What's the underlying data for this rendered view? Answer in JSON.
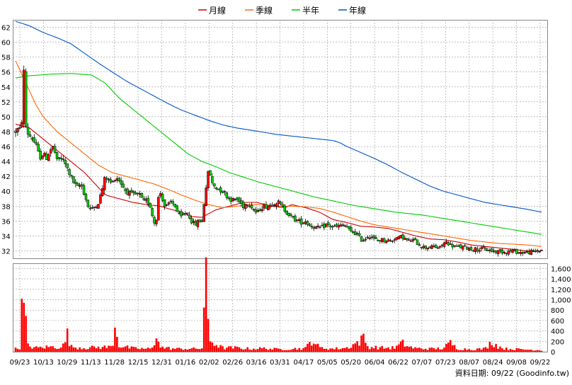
{
  "chart_data": {
    "type": "candlestick",
    "legend": [
      {
        "name": "月線",
        "color": "#cc0000"
      },
      {
        "name": "季線",
        "color": "#ff6600"
      },
      {
        "name": "半年",
        "color": "#00cc00"
      },
      {
        "name": "年線",
        "color": "#0055cc"
      }
    ],
    "legend_position": "top-center",
    "grid": true,
    "price_axis": {
      "side": "left",
      "ylim": [
        31,
        63
      ],
      "ticks": [
        32,
        34,
        36,
        38,
        40,
        42,
        44,
        46,
        48,
        50,
        52,
        54,
        56,
        58,
        60,
        62
      ]
    },
    "volume_axis": {
      "side": "right",
      "ylim": [
        0,
        1700
      ],
      "ticks": [
        "0",
        "200",
        "400",
        "600",
        "800",
        "1,000",
        "1,200",
        "1,400",
        "1,600"
      ],
      "tick_values": [
        0,
        200,
        400,
        600,
        800,
        1000,
        1200,
        1400,
        1600
      ]
    },
    "x_labels": [
      "09/23",
      "10/13",
      "10/29",
      "11/13",
      "11/28",
      "12/15",
      "12/31",
      "01/16",
      "02/02",
      "02/26",
      "03/16",
      "03/31",
      "04/17",
      "05/05",
      "05/20",
      "06/04",
      "06/22",
      "07/07",
      "07/23",
      "08/07",
      "08/24",
      "09/08",
      "09/22"
    ],
    "series_keypoints": {
      "月線": [
        [
          0,
          49
        ],
        [
          20,
          48.5
        ],
        [
          40,
          47
        ],
        [
          60,
          45.5
        ],
        [
          80,
          44
        ],
        [
          100,
          42.5
        ],
        [
          115,
          41
        ],
        [
          130,
          39.5
        ],
        [
          150,
          39
        ],
        [
          170,
          38.5
        ],
        [
          190,
          38.2
        ],
        [
          210,
          38
        ],
        [
          220,
          37.7
        ],
        [
          240,
          37.2
        ],
        [
          255,
          36.6
        ],
        [
          270,
          36.5
        ],
        [
          290,
          37.5
        ],
        [
          310,
          38
        ],
        [
          330,
          38.5
        ],
        [
          350,
          38.5
        ],
        [
          370,
          38
        ],
        [
          390,
          37.8
        ],
        [
          400,
          38.2
        ],
        [
          420,
          37.8
        ],
        [
          440,
          37.2
        ],
        [
          460,
          36.2
        ],
        [
          480,
          35.8
        ],
        [
          500,
          35.3
        ],
        [
          520,
          35.2
        ],
        [
          540,
          35
        ],
        [
          560,
          34.5
        ],
        [
          580,
          34
        ],
        [
          600,
          33.6
        ],
        [
          620,
          33.5
        ],
        [
          640,
          33.2
        ],
        [
          660,
          32.8
        ],
        [
          680,
          32.6
        ],
        [
          700,
          32.4
        ],
        [
          720,
          32.2
        ],
        [
          740,
          32
        ],
        [
          750,
          31.9
        ],
        [
          762,
          32
        ]
      ],
      "季線": [
        [
          0,
          57.5
        ],
        [
          10,
          55.5
        ],
        [
          20,
          53.5
        ],
        [
          30,
          51.5
        ],
        [
          40,
          50
        ],
        [
          60,
          48
        ],
        [
          80,
          46.5
        ],
        [
          100,
          45
        ],
        [
          120,
          43.5
        ],
        [
          140,
          42.5
        ],
        [
          160,
          42
        ],
        [
          180,
          41.5
        ],
        [
          200,
          41
        ],
        [
          220,
          40.3
        ],
        [
          240,
          39.5
        ],
        [
          260,
          38.8
        ],
        [
          280,
          38.2
        ],
        [
          300,
          37.8
        ],
        [
          320,
          38
        ],
        [
          340,
          38.2
        ],
        [
          360,
          38.2
        ],
        [
          380,
          38
        ],
        [
          400,
          38
        ],
        [
          420,
          37.9
        ],
        [
          440,
          37.7
        ],
        [
          460,
          37.2
        ],
        [
          480,
          36.6
        ],
        [
          500,
          36
        ],
        [
          520,
          35.5
        ],
        [
          540,
          35.2
        ],
        [
          560,
          34.9
        ],
        [
          580,
          34.6
        ],
        [
          600,
          34.3
        ],
        [
          620,
          34
        ],
        [
          640,
          33.7
        ],
        [
          660,
          33.4
        ],
        [
          680,
          33.2
        ],
        [
          700,
          33
        ],
        [
          720,
          32.9
        ],
        [
          740,
          32.8
        ],
        [
          762,
          32.6
        ]
      ],
      "半年": [
        [
          0,
          55.2
        ],
        [
          20,
          55.5
        ],
        [
          50,
          55.7
        ],
        [
          80,
          55.8
        ],
        [
          110,
          55.6
        ],
        [
          130,
          54.5
        ],
        [
          150,
          52.5
        ],
        [
          170,
          51
        ],
        [
          190,
          49.5
        ],
        [
          210,
          48
        ],
        [
          230,
          46.5
        ],
        [
          250,
          45
        ],
        [
          270,
          44
        ],
        [
          290,
          43.3
        ],
        [
          310,
          42.5
        ],
        [
          330,
          41.9
        ],
        [
          350,
          41.3
        ],
        [
          370,
          40.8
        ],
        [
          390,
          40.3
        ],
        [
          410,
          39.8
        ],
        [
          430,
          39.3
        ],
        [
          450,
          38.9
        ],
        [
          470,
          38.5
        ],
        [
          490,
          38.1
        ],
        [
          510,
          37.8
        ],
        [
          530,
          37.5
        ],
        [
          550,
          37.2
        ],
        [
          570,
          37
        ],
        [
          590,
          36.8
        ],
        [
          610,
          36.5
        ],
        [
          630,
          36.2
        ],
        [
          650,
          35.9
        ],
        [
          670,
          35.6
        ],
        [
          690,
          35.3
        ],
        [
          710,
          35
        ],
        [
          730,
          34.7
        ],
        [
          750,
          34.4
        ],
        [
          762,
          34.2
        ]
      ],
      "年線": [
        [
          0,
          62.8
        ],
        [
          20,
          62.2
        ],
        [
          40,
          61.3
        ],
        [
          60,
          60.6
        ],
        [
          80,
          59.8
        ],
        [
          100,
          58.5
        ],
        [
          120,
          57.2
        ],
        [
          140,
          56
        ],
        [
          160,
          54.8
        ],
        [
          180,
          53.8
        ],
        [
          200,
          52.8
        ],
        [
          220,
          51.8
        ],
        [
          240,
          50.9
        ],
        [
          260,
          50.2
        ],
        [
          280,
          49.5
        ],
        [
          300,
          48.9
        ],
        [
          320,
          48.5
        ],
        [
          340,
          48.2
        ],
        [
          360,
          47.9
        ],
        [
          380,
          47.6
        ],
        [
          400,
          47.4
        ],
        [
          420,
          47.2
        ],
        [
          440,
          47
        ],
        [
          460,
          46.8
        ],
        [
          470,
          46.5
        ],
        [
          480,
          46
        ],
        [
          500,
          45.2
        ],
        [
          520,
          44.4
        ],
        [
          540,
          43.5
        ],
        [
          560,
          42.5
        ],
        [
          580,
          41.6
        ],
        [
          600,
          40.7
        ],
        [
          620,
          40
        ],
        [
          640,
          39.5
        ],
        [
          660,
          39
        ],
        [
          680,
          38.5
        ],
        [
          700,
          38.2
        ],
        [
          720,
          37.9
        ],
        [
          740,
          37.6
        ],
        [
          762,
          37.2
        ]
      ]
    },
    "price_keypoints": [
      [
        0,
        48
      ],
      [
        5,
        48.5
      ],
      [
        8,
        47.5
      ],
      [
        10,
        51.5
      ],
      [
        12,
        56
      ],
      [
        14,
        49.5
      ],
      [
        16,
        48
      ],
      [
        20,
        47.5
      ],
      [
        25,
        47
      ],
      [
        30,
        46
      ],
      [
        35,
        44.5
      ],
      [
        40,
        45
      ],
      [
        45,
        44.5
      ],
      [
        50,
        45.5
      ],
      [
        55,
        46
      ],
      [
        60,
        44
      ],
      [
        65,
        44.5
      ],
      [
        70,
        44
      ],
      [
        80,
        42
      ],
      [
        85,
        41
      ],
      [
        90,
        40.5
      ],
      [
        95,
        41
      ],
      [
        100,
        39.5
      ],
      [
        105,
        38
      ],
      [
        110,
        37.5
      ],
      [
        115,
        38
      ],
      [
        120,
        38.5
      ],
      [
        125,
        40
      ],
      [
        130,
        42
      ],
      [
        135,
        41.5
      ],
      [
        140,
        41
      ],
      [
        145,
        42
      ],
      [
        150,
        41.5
      ],
      [
        160,
        40
      ],
      [
        170,
        39.5
      ],
      [
        180,
        39.5
      ],
      [
        185,
        38.5
      ],
      [
        190,
        38.8
      ],
      [
        195,
        38
      ],
      [
        200,
        36
      ],
      [
        203,
        35.5
      ],
      [
        208,
        40
      ],
      [
        212,
        39.5
      ],
      [
        215,
        38
      ],
      [
        220,
        38
      ],
      [
        225,
        38.5
      ],
      [
        230,
        38.3
      ],
      [
        235,
        37
      ],
      [
        240,
        36.5
      ],
      [
        245,
        37
      ],
      [
        250,
        37
      ],
      [
        255,
        36
      ],
      [
        260,
        35.5
      ],
      [
        265,
        36
      ],
      [
        270,
        36
      ],
      [
        275,
        40
      ],
      [
        280,
        43
      ],
      [
        285,
        41
      ],
      [
        290,
        40.5
      ],
      [
        295,
        40.3
      ],
      [
        300,
        40
      ],
      [
        305,
        39.5
      ],
      [
        310,
        39
      ],
      [
        315,
        38.8
      ],
      [
        320,
        39
      ],
      [
        325,
        38.5
      ],
      [
        330,
        38
      ],
      [
        335,
        38.5
      ],
      [
        340,
        38.2
      ],
      [
        345,
        37.5
      ],
      [
        350,
        37
      ],
      [
        355,
        37.8
      ],
      [
        360,
        38
      ],
      [
        365,
        38
      ],
      [
        370,
        38.2
      ],
      [
        375,
        38.5
      ],
      [
        380,
        38.6
      ],
      [
        385,
        38
      ],
      [
        390,
        37.5
      ],
      [
        395,
        37
      ],
      [
        400,
        36.5
      ],
      [
        405,
        36.2
      ],
      [
        410,
        36
      ],
      [
        415,
        35.8
      ],
      [
        420,
        36
      ],
      [
        425,
        35.5
      ],
      [
        430,
        35.3
      ],
      [
        440,
        35
      ],
      [
        445,
        35.2
      ],
      [
        450,
        35.5
      ],
      [
        460,
        35.2
      ],
      [
        470,
        35.3
      ],
      [
        475,
        35.5
      ],
      [
        480,
        35.2
      ],
      [
        485,
        34.5
      ],
      [
        490,
        34.5
      ],
      [
        495,
        34.2
      ],
      [
        500,
        33.5
      ],
      [
        505,
        33.5
      ],
      [
        510,
        34
      ],
      [
        515,
        34
      ],
      [
        520,
        33.5
      ],
      [
        525,
        33.4
      ],
      [
        530,
        33.5
      ],
      [
        540,
        33.4
      ],
      [
        545,
        33.3
      ],
      [
        550,
        33.8
      ],
      [
        555,
        33.7
      ],
      [
        560,
        34
      ],
      [
        565,
        33.5
      ],
      [
        570,
        33.3
      ],
      [
        575,
        33.5
      ],
      [
        580,
        33.2
      ],
      [
        590,
        32.5
      ],
      [
        600,
        32.5
      ],
      [
        610,
        32.5
      ],
      [
        615,
        32.4
      ],
      [
        620,
        33
      ],
      [
        625,
        33.2
      ],
      [
        630,
        32.8
      ],
      [
        640,
        32.5
      ],
      [
        650,
        32.5
      ],
      [
        660,
        32.3
      ],
      [
        670,
        32.2
      ],
      [
        680,
        32.2
      ],
      [
        690,
        32
      ],
      [
        700,
        31.9
      ],
      [
        710,
        31.9
      ],
      [
        720,
        32
      ],
      [
        730,
        31.8
      ],
      [
        740,
        31.8
      ],
      [
        750,
        31.9
      ],
      [
        762,
        32.1
      ]
    ],
    "volume_keypoints": [
      [
        0,
        60
      ],
      [
        6,
        80
      ],
      [
        10,
        1050
      ],
      [
        14,
        700
      ],
      [
        18,
        120
      ],
      [
        30,
        80
      ],
      [
        50,
        100
      ],
      [
        60,
        90
      ],
      [
        70,
        130
      ],
      [
        75,
        350
      ],
      [
        80,
        100
      ],
      [
        100,
        80
      ],
      [
        120,
        90
      ],
      [
        140,
        100
      ],
      [
        145,
        600
      ],
      [
        150,
        120
      ],
      [
        170,
        70
      ],
      [
        190,
        60
      ],
      [
        200,
        70
      ],
      [
        205,
        470
      ],
      [
        210,
        90
      ],
      [
        230,
        60
      ],
      [
        260,
        60
      ],
      [
        270,
        70
      ],
      [
        275,
        1600
      ],
      [
        280,
        250
      ],
      [
        290,
        150
      ],
      [
        300,
        80
      ],
      [
        320,
        80
      ],
      [
        340,
        60
      ],
      [
        360,
        70
      ],
      [
        380,
        50
      ],
      [
        400,
        60
      ],
      [
        420,
        70
      ],
      [
        430,
        250
      ],
      [
        440,
        80
      ],
      [
        460,
        60
      ],
      [
        480,
        80
      ],
      [
        490,
        150
      ],
      [
        500,
        220
      ],
      [
        505,
        300
      ],
      [
        510,
        100
      ],
      [
        530,
        80
      ],
      [
        550,
        80
      ],
      [
        560,
        180
      ],
      [
        570,
        100
      ],
      [
        580,
        70
      ],
      [
        600,
        60
      ],
      [
        620,
        70
      ],
      [
        630,
        180
      ],
      [
        640,
        60
      ],
      [
        660,
        50
      ],
      [
        680,
        60
      ],
      [
        690,
        200
      ],
      [
        700,
        100
      ],
      [
        710,
        60
      ],
      [
        730,
        50
      ],
      [
        750,
        40
      ],
      [
        762,
        30
      ]
    ]
  },
  "source_label": "資料日期: 09/22  (Goodinfo.tw)"
}
